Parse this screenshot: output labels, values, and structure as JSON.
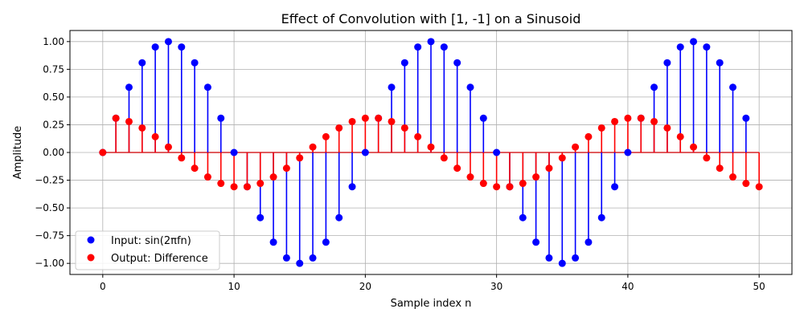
{
  "chart_data": {
    "type": "stem",
    "title": "Effect of Convolution with [1, -1] on a Sinusoid",
    "xlabel": "Sample index n",
    "ylabel": "Amplitude",
    "xlim": [
      -2.5,
      52.5
    ],
    "ylim": [
      -1.1,
      1.1
    ],
    "xticks": [
      0,
      10,
      20,
      30,
      40,
      50
    ],
    "yticks": [
      -1.0,
      -0.75,
      -0.5,
      -0.25,
      0.0,
      0.25,
      0.5,
      0.75,
      1.0
    ],
    "ytick_labels": [
      "−1.00",
      "−0.75",
      "−0.50",
      "−0.25",
      "0.00",
      "0.25",
      "0.50",
      "0.75",
      "1.00"
    ],
    "grid": true,
    "legend_position": "lower-left",
    "baseline_color": "#d62728",
    "series": [
      {
        "name": "Input: sin(2πfn)",
        "color": "#0000ff",
        "x": [
          0,
          1,
          2,
          3,
          4,
          5,
          6,
          7,
          8,
          9,
          10,
          11,
          12,
          13,
          14,
          15,
          16,
          17,
          18,
          19,
          20,
          21,
          22,
          23,
          24,
          25,
          26,
          27,
          28,
          29,
          30,
          31,
          32,
          33,
          34,
          35,
          36,
          37,
          38,
          39,
          40,
          41,
          42,
          43,
          44,
          45,
          46,
          47,
          48,
          49
        ],
        "values": [
          0.0,
          0.309,
          0.588,
          0.809,
          0.951,
          1.0,
          0.951,
          0.809,
          0.588,
          0.309,
          0.0,
          -0.309,
          -0.588,
          -0.809,
          -0.951,
          -1.0,
          -0.951,
          -0.809,
          -0.588,
          -0.309,
          0.0,
          0.309,
          0.588,
          0.809,
          0.951,
          1.0,
          0.951,
          0.809,
          0.588,
          0.309,
          0.0,
          -0.309,
          -0.588,
          -0.809,
          -0.951,
          -1.0,
          -0.951,
          -0.809,
          -0.588,
          -0.309,
          0.0,
          0.309,
          0.588,
          0.809,
          0.951,
          1.0,
          0.951,
          0.809,
          0.588,
          0.309
        ]
      },
      {
        "name": "Output: Difference",
        "color": "#ff0000",
        "x": [
          0,
          1,
          2,
          3,
          4,
          5,
          6,
          7,
          8,
          9,
          10,
          11,
          12,
          13,
          14,
          15,
          16,
          17,
          18,
          19,
          20,
          21,
          22,
          23,
          24,
          25,
          26,
          27,
          28,
          29,
          30,
          31,
          32,
          33,
          34,
          35,
          36,
          37,
          38,
          39,
          40,
          41,
          42,
          43,
          44,
          45,
          46,
          47,
          48,
          49,
          50
        ],
        "values": [
          0.0,
          0.309,
          0.279,
          0.221,
          0.142,
          0.049,
          -0.049,
          -0.142,
          -0.221,
          -0.279,
          -0.309,
          -0.309,
          -0.279,
          -0.221,
          -0.142,
          -0.049,
          0.049,
          0.142,
          0.221,
          0.279,
          0.309,
          0.309,
          0.279,
          0.221,
          0.142,
          0.049,
          -0.049,
          -0.142,
          -0.221,
          -0.279,
          -0.309,
          -0.309,
          -0.279,
          -0.221,
          -0.142,
          -0.049,
          0.049,
          0.142,
          0.221,
          0.279,
          0.309,
          0.309,
          0.279,
          0.221,
          0.142,
          0.049,
          -0.049,
          -0.142,
          -0.221,
          -0.279,
          -0.309
        ]
      }
    ]
  }
}
